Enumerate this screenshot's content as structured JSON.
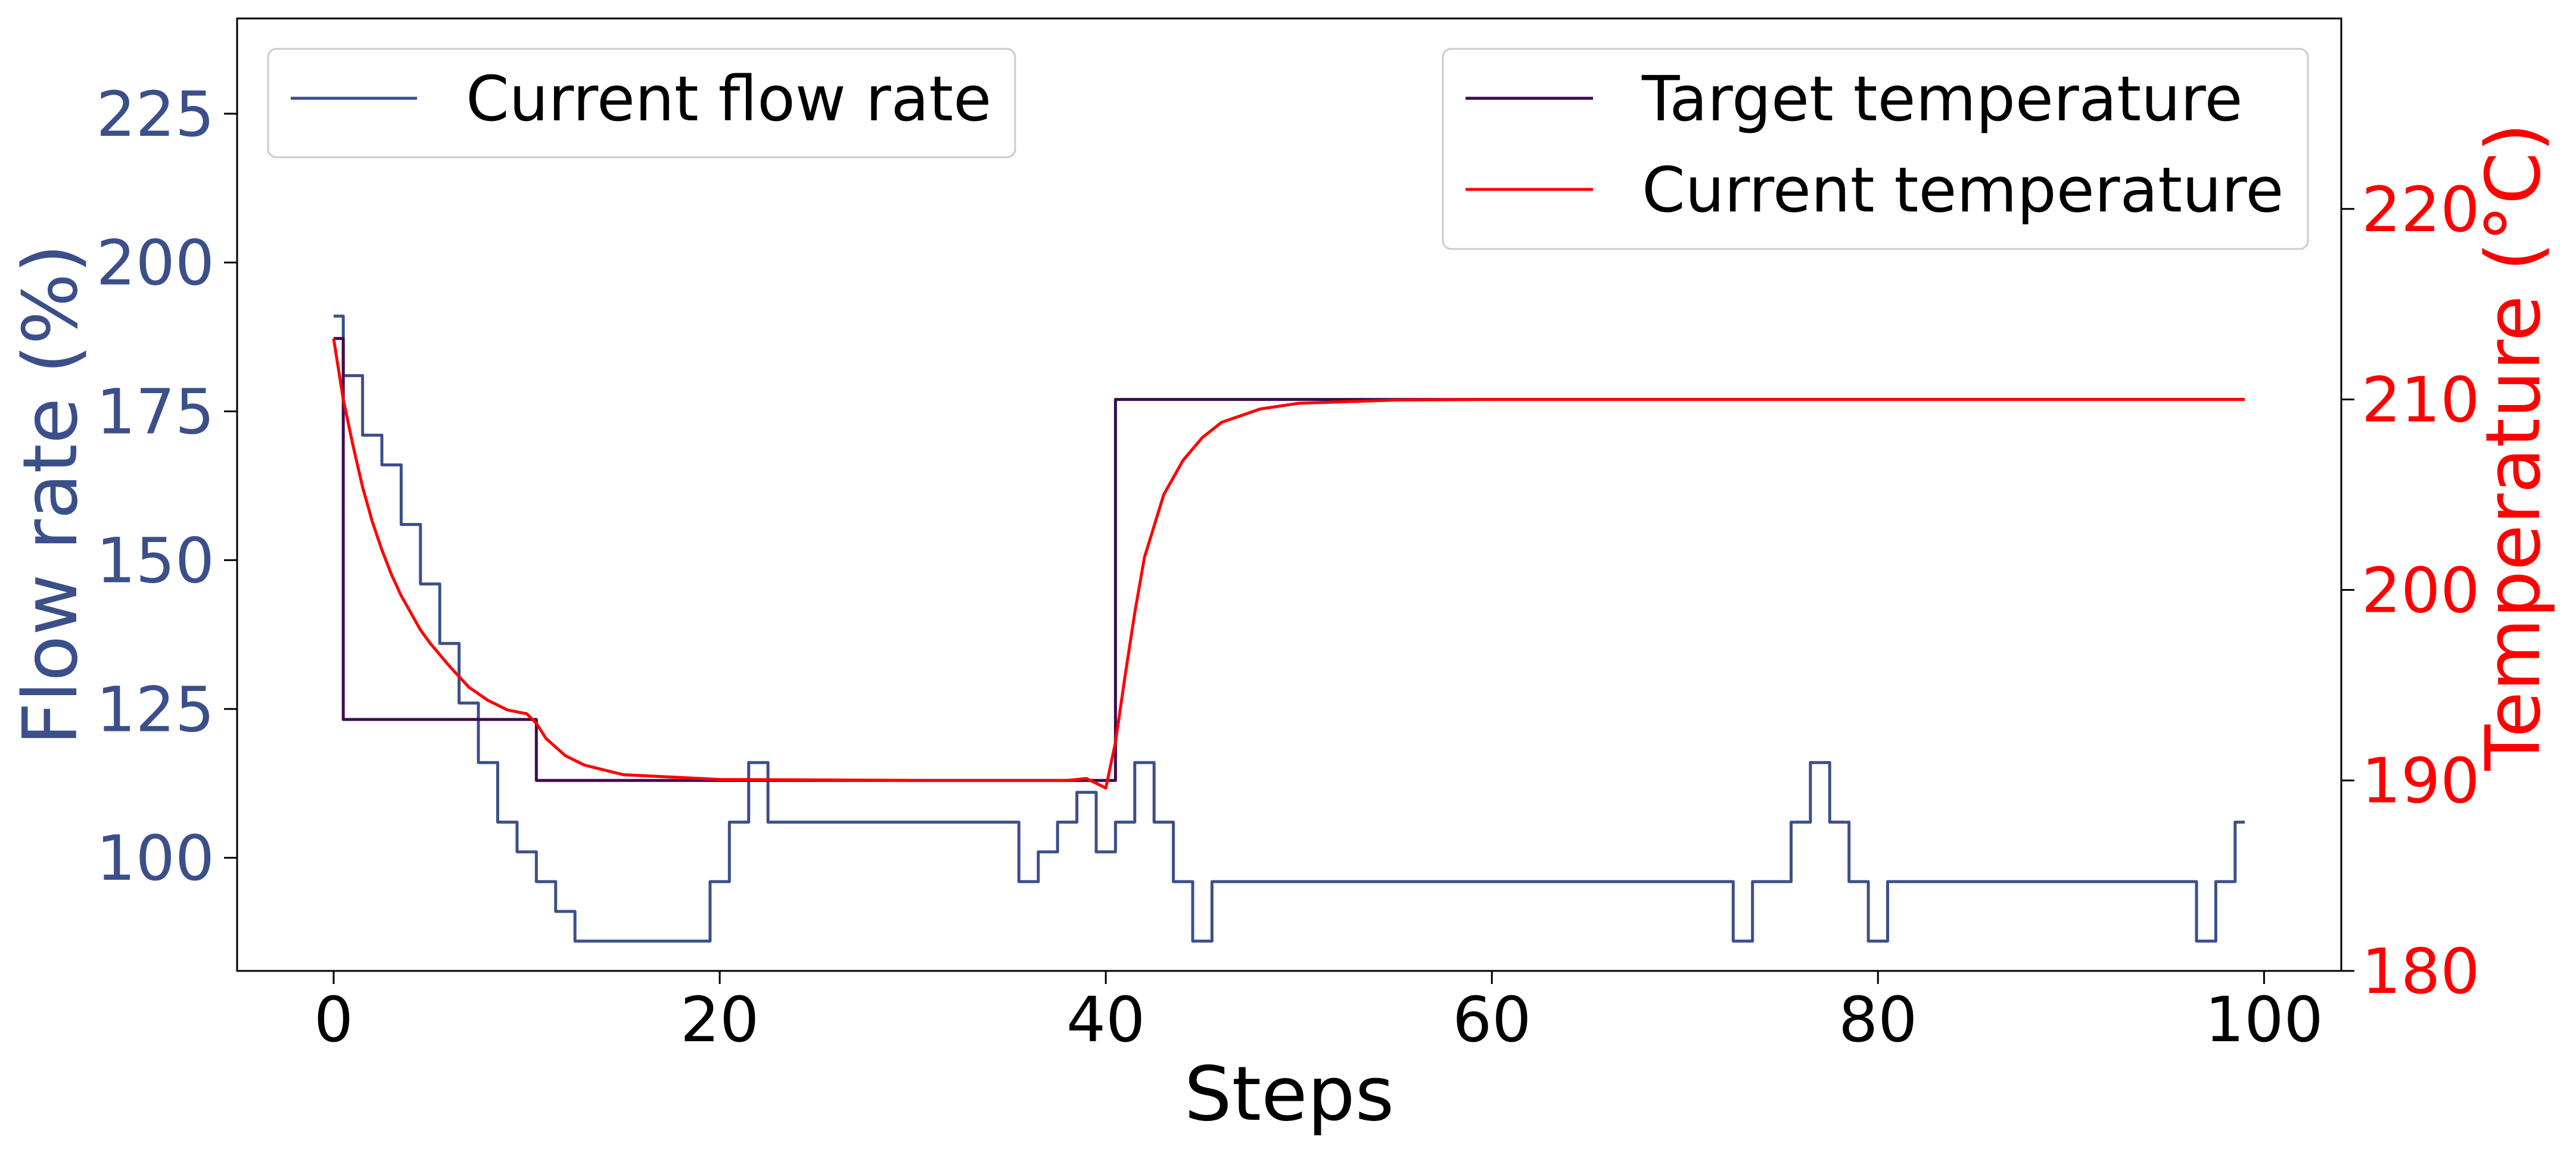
{
  "chart_data": {
    "type": "line",
    "xlabel": "Steps",
    "ylabel_left": "Flow rate (%)",
    "ylabel_right": "Temperature (°C)",
    "xlim": [
      -5,
      104
    ],
    "ylim_left": [
      81,
      241
    ],
    "ylim_right": [
      180,
      230
    ],
    "x_ticks": [
      "0",
      "20",
      "40",
      "60",
      "80",
      "100"
    ],
    "y_left_ticks": [
      "100",
      "125",
      "150",
      "175",
      "200",
      "225"
    ],
    "y_right_ticks": [
      "180",
      "190",
      "200",
      "210",
      "220"
    ],
    "grid": false,
    "legends": {
      "left": {
        "placement": "top-left",
        "entries": [
          "Current flow rate"
        ]
      },
      "right": {
        "placement": "top-right",
        "entries": [
          "Target temperature",
          "Current temperature"
        ]
      }
    },
    "colors": {
      "flow": "#3b4f8a",
      "target": "#3d0a4f",
      "current_temp": "#ff0000",
      "left_axis_text": "#3b4f8a",
      "right_axis_text": "#ff0000"
    },
    "series": [
      {
        "name": "Current flow rate",
        "axis": "left",
        "style": "step",
        "x": [
          0,
          0.5,
          1.5,
          2.5,
          3.5,
          4.5,
          5.5,
          6.5,
          7.5,
          8.5,
          9.5,
          10.5,
          11.5,
          12.5,
          19.5,
          20.5,
          21.5,
          22.5,
          35.5,
          36.5,
          37.5,
          38.5,
          39.5,
          40.5,
          41.5,
          42.5,
          43.5,
          44.5,
          45.5,
          72.5,
          73.5,
          75.5,
          76.5,
          77.5,
          78.5,
          79.5,
          80.5,
          96.5,
          97.5,
          98.5,
          99
        ],
        "y": [
          191,
          181,
          171,
          166,
          156,
          146,
          136,
          126,
          116,
          106,
          101,
          96,
          91,
          86,
          96,
          106,
          116,
          106,
          96,
          101,
          106,
          111,
          101,
          106,
          116,
          106,
          96,
          86,
          96,
          86,
          96,
          106,
          116,
          106,
          96,
          86,
          96,
          86,
          96,
          106,
          106
        ]
      },
      {
        "name": "Target temperature",
        "axis": "right",
        "style": "step",
        "x": [
          0,
          0.5,
          10.5,
          40.5,
          99
        ],
        "y": [
          213.2,
          193.2,
          190.0,
          210.0,
          210.0
        ]
      },
      {
        "name": "Current temperature",
        "axis": "right",
        "style": "line",
        "x": [
          0,
          0.5,
          1,
          1.5,
          2,
          2.5,
          3,
          3.5,
          4,
          4.5,
          5,
          6,
          7,
          8,
          9,
          10,
          10.5,
          11,
          12,
          13,
          15,
          20,
          30,
          38,
          39,
          40,
          40.5,
          41,
          41.5,
          42,
          43,
          44,
          45,
          46,
          48,
          50,
          55,
          60,
          99
        ],
        "y": [
          213.2,
          210.0,
          207.6,
          205.4,
          203.6,
          202.1,
          200.8,
          199.7,
          198.8,
          197.9,
          197.2,
          196.0,
          194.9,
          194.2,
          193.7,
          193.5,
          193.0,
          192.2,
          191.3,
          190.8,
          190.3,
          190.05,
          190.0,
          190.0,
          190.1,
          189.6,
          192.0,
          195.5,
          198.8,
          201.7,
          205.0,
          206.8,
          208.0,
          208.8,
          209.5,
          209.8,
          209.97,
          210.0,
          210.0
        ]
      }
    ]
  }
}
